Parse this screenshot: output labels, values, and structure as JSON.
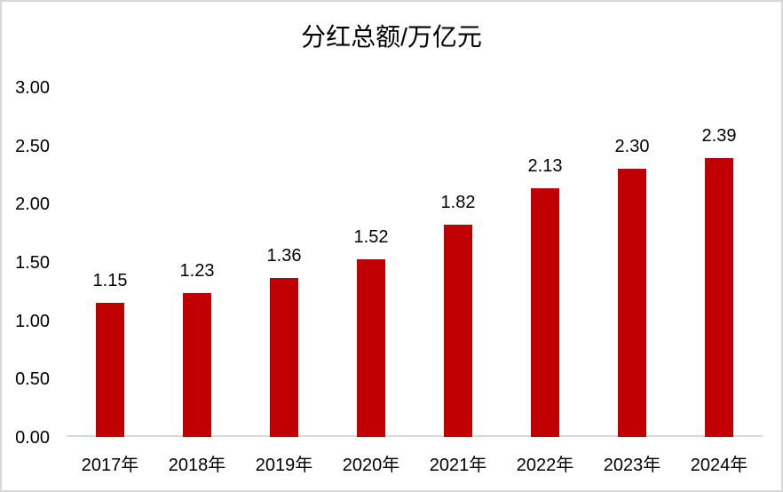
{
  "page": {
    "background": "#ffffff",
    "border_color": "#d8d8d8"
  },
  "chart_data": {
    "type": "bar",
    "title": "分红总额/万亿元",
    "categories": [
      "2017年",
      "2018年",
      "2019年",
      "2020年",
      "2021年",
      "2022年",
      "2023年",
      "2024年"
    ],
    "values": [
      1.15,
      1.23,
      1.36,
      1.52,
      1.82,
      2.13,
      2.3,
      2.39
    ],
    "value_labels": [
      "1.15",
      "1.23",
      "1.36",
      "1.52",
      "1.82",
      "2.13",
      "2.30",
      "2.39"
    ],
    "ylim": [
      0,
      3.0
    ],
    "ytick_step": 0.5,
    "ytick_labels": [
      "3.00",
      "2.50",
      "2.00",
      "1.50",
      "1.00",
      "0.50",
      "0.00"
    ],
    "xlabel": "",
    "ylabel": "",
    "grid": false,
    "legend_position": "none",
    "bar_color": "#c00000",
    "axis_line_color": "#d9d9d9",
    "text_color": "#000000"
  }
}
